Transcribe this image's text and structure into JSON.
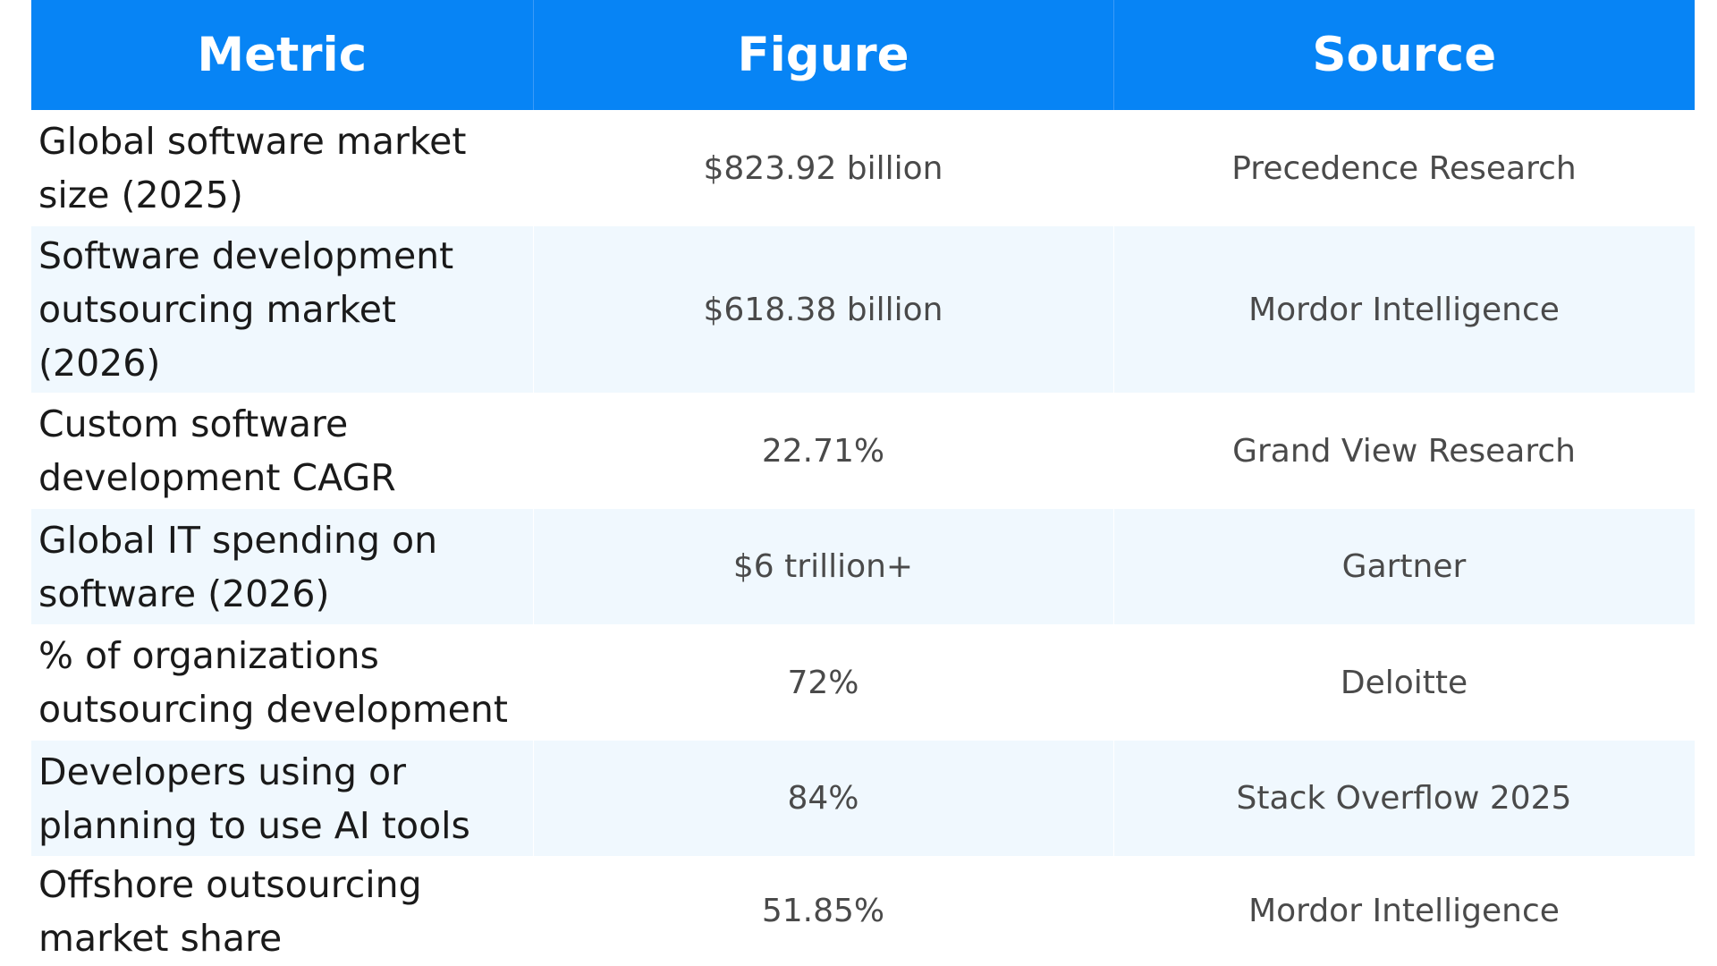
{
  "table": {
    "headers": {
      "metric": "Metric",
      "figure": "Figure",
      "source": "Source"
    },
    "rows": [
      {
        "metric": "Global software market size (2025)",
        "figure": "$823.92 billion",
        "source": "Precedence Research"
      },
      {
        "metric": "Software development outsourcing market (2026)",
        "figure": "$618.38 billion",
        "source": "Mordor Intelligence"
      },
      {
        "metric": "Custom software development CAGR",
        "figure": "22.71%",
        "source": "Grand View Research"
      },
      {
        "metric": "Global IT spending on software (2026)",
        "figure": "$6 trillion+",
        "source": "Gartner"
      },
      {
        "metric": "% of organizations outsourcing development",
        "figure": "72%",
        "source": "Deloitte"
      },
      {
        "metric": "Developers using or planning to use AI tools",
        "figure": "84%",
        "source": "Stack Overflow 2025"
      },
      {
        "metric": "Offshore outsourcing market share",
        "figure": "51.85%",
        "source": "Mordor Intelligence"
      }
    ]
  },
  "colors": {
    "header_background": "#0784f5",
    "header_text": "#ffffff",
    "row_stripe": "#f0f8fe",
    "row_plain": "#ffffff"
  }
}
